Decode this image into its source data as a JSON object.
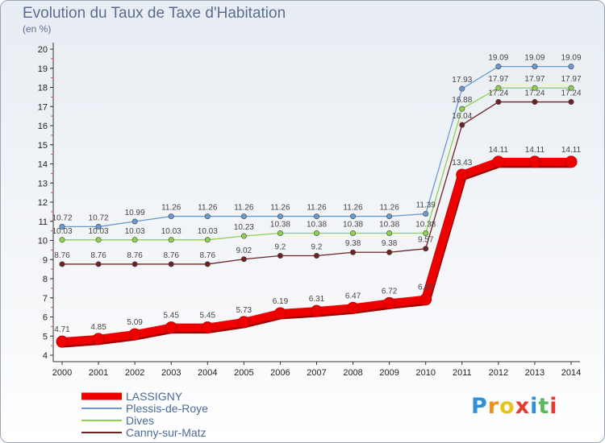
{
  "title": "Evolution du Taux de Taxe d'Habitation",
  "subtitle": "(en %)",
  "logo": {
    "letters": [
      "P",
      "r",
      "o",
      "x",
      "i",
      "t",
      "i"
    ],
    "colors": [
      "#2f8fd8",
      "#f28c1b",
      "#e6c21a",
      "#e63a2e",
      "#2f8fd8",
      "#5cb85c",
      "#e63a2e"
    ]
  },
  "chart_data": {
    "type": "line",
    "x": [
      "2000",
      "2001",
      "2002",
      "2003",
      "2004",
      "2005",
      "2006",
      "2007",
      "2008",
      "2009",
      "2010",
      "2011",
      "2012",
      "2013",
      "2014"
    ],
    "ylim": [
      4,
      20
    ],
    "yticks": [
      4,
      5,
      6,
      7,
      8,
      9,
      10,
      11,
      12,
      13,
      14,
      15,
      16,
      17,
      18,
      19,
      20
    ],
    "grid": false,
    "legend_position": "bottom-left",
    "series": [
      {
        "name": "LASSIGNY",
        "color": "#ee0000",
        "thick": true,
        "values": [
          4.71,
          4.85,
          5.09,
          5.45,
          5.45,
          5.73,
          6.19,
          6.31,
          6.47,
          6.72,
          6.92,
          13.43,
          14.11,
          14.11,
          14.11
        ],
        "labels": [
          "4.71",
          "4.85",
          "5.09",
          "5.45",
          "5.45",
          "5.73",
          "6.19",
          "6.31",
          "6.47",
          "6.72",
          "6.92",
          "13.43",
          "14.11",
          "14.11",
          "14.11"
        ]
      },
      {
        "name": "Plessis-de-Roye",
        "color": "#6a9ad0",
        "thick": false,
        "values": [
          10.72,
          10.72,
          10.99,
          11.26,
          11.26,
          11.26,
          11.26,
          11.26,
          11.26,
          11.26,
          11.39,
          17.93,
          19.09,
          19.09,
          19.09
        ],
        "labels": [
          "10.72",
          "10.72",
          "10.99",
          "11.26",
          "11.26",
          "11.26",
          "11.26",
          "11.26",
          "11.26",
          "11.26",
          "11.39",
          "17.93",
          "19.09",
          "19.09",
          "19.09"
        ]
      },
      {
        "name": "Dives",
        "color": "#8ed14f",
        "thick": false,
        "values": [
          10.03,
          10.03,
          10.03,
          10.03,
          10.03,
          10.23,
          10.38,
          10.38,
          10.38,
          10.38,
          10.38,
          16.88,
          17.97,
          17.97,
          17.97
        ],
        "labels": [
          "10.03",
          "10.03",
          "10.03",
          "10.03",
          "10.03",
          "10.23",
          "10.38",
          "10.38",
          "10.38",
          "10.38",
          "10.38",
          "16.88",
          "17.97",
          "17.97",
          "17.97"
        ]
      },
      {
        "name": "Canny-sur-Matz",
        "color": "#6e2323",
        "thick": false,
        "values": [
          8.76,
          8.76,
          8.76,
          8.76,
          8.76,
          9.02,
          9.2,
          9.2,
          9.38,
          9.38,
          9.57,
          16.04,
          17.24,
          17.24,
          17.24
        ],
        "labels": [
          "8.76",
          "8.76",
          "8.76",
          "8.76",
          "8.76",
          "9.02",
          "9.2",
          "9.2",
          "9.38",
          "9.38",
          "9.57",
          "16.04",
          "17.24",
          "17.24",
          "17.24"
        ]
      }
    ]
  }
}
